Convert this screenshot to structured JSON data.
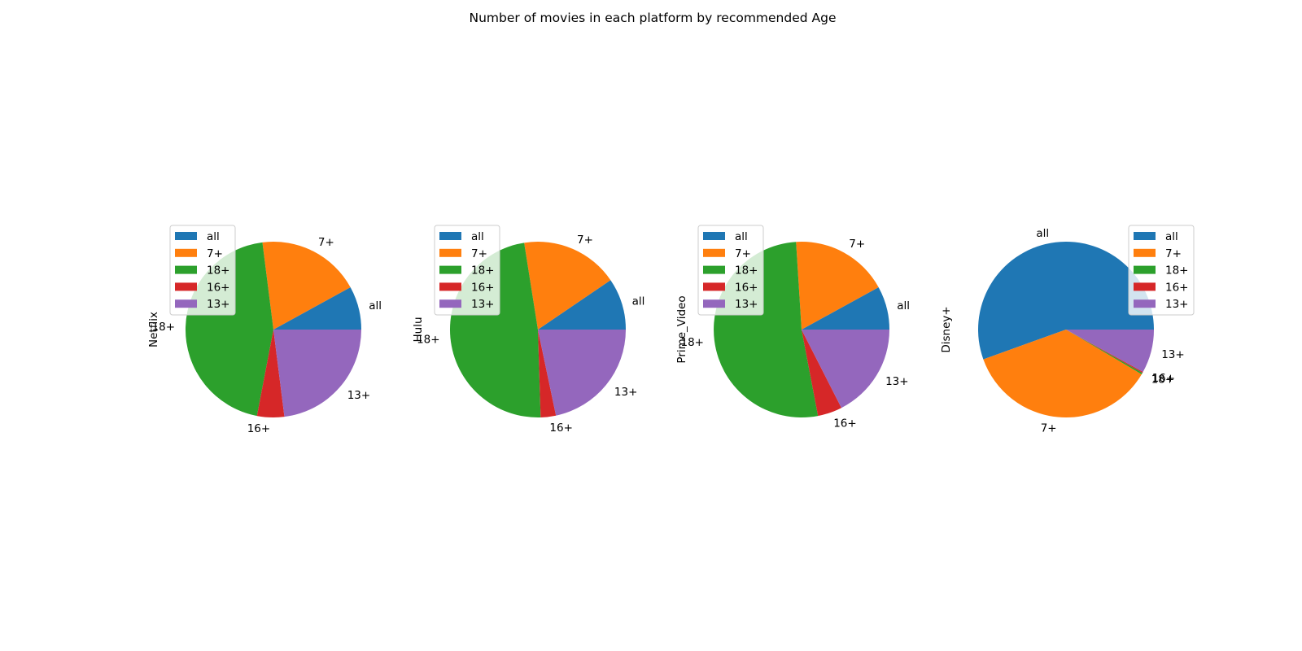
{
  "title": "Number of movies in each platform by recommended Age",
  "chart_data": [
    {
      "type": "pie",
      "ylabel": "Netflix",
      "categories": [
        "all",
        "7+",
        "18+",
        "16+",
        "13+"
      ],
      "values": [
        8.0,
        19.0,
        45.0,
        5.0,
        23.0
      ],
      "colors": [
        "#1f77b4",
        "#ff7f0e",
        "#2ca02c",
        "#d62728",
        "#9467bd"
      ],
      "legend": "upper-left",
      "legend_entries": [
        "all",
        "7+",
        "18+",
        "16+",
        "13+"
      ]
    },
    {
      "type": "pie",
      "ylabel": "Hulu",
      "categories": [
        "all",
        "7+",
        "18+",
        "16+",
        "13+"
      ],
      "values": [
        9.5,
        18.0,
        48.0,
        2.8,
        21.7
      ],
      "colors": [
        "#1f77b4",
        "#ff7f0e",
        "#2ca02c",
        "#d62728",
        "#9467bd"
      ],
      "legend": "upper-left",
      "legend_entries": [
        "all",
        "7+",
        "18+",
        "16+",
        "13+"
      ]
    },
    {
      "type": "pie",
      "ylabel": "Prime_Video",
      "categories": [
        "all",
        "7+",
        "18+",
        "16+",
        "13+"
      ],
      "values": [
        8.0,
        18.0,
        52.0,
        4.5,
        17.5
      ],
      "colors": [
        "#1f77b4",
        "#ff7f0e",
        "#2ca02c",
        "#d62728",
        "#9467bd"
      ],
      "legend": "upper-left",
      "legend_entries": [
        "all",
        "7+",
        "18+",
        "16+",
        "13+"
      ]
    },
    {
      "type": "pie",
      "ylabel": "Disney+",
      "categories": [
        "all",
        "7+",
        "18+",
        "16+",
        "13+"
      ],
      "values": [
        55.5,
        36.0,
        0.3,
        0.2,
        8.0
      ],
      "colors": [
        "#1f77b4",
        "#ff7f0e",
        "#2ca02c",
        "#d62728",
        "#9467bd"
      ],
      "legend": "upper-right",
      "legend_entries": [
        "all",
        "7+",
        "18+",
        "16+",
        "13+"
      ]
    }
  ]
}
